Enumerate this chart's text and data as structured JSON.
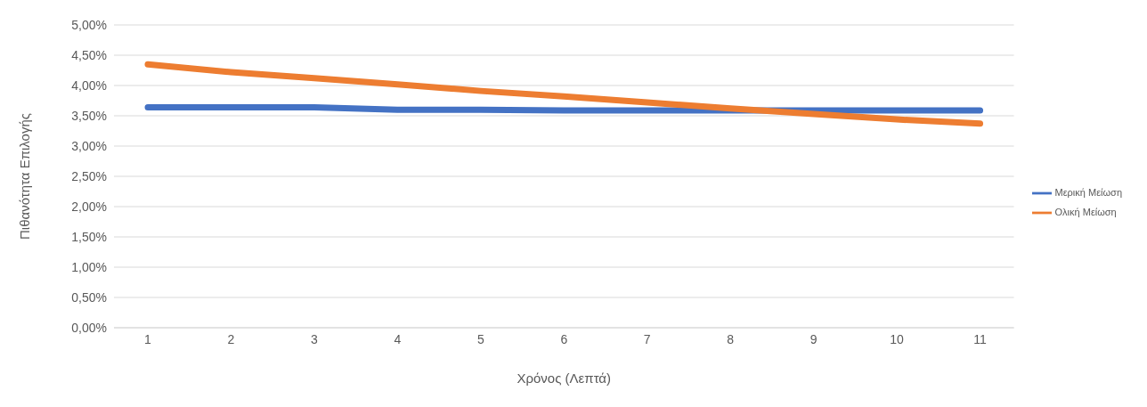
{
  "chart_data": {
    "type": "line",
    "xlabel": "Χρόνος (Λεπτά)",
    "ylabel": "Πιθανότητα Επιλογής",
    "categories": [
      "1",
      "2",
      "3",
      "4",
      "5",
      "6",
      "7",
      "8",
      "9",
      "10",
      "11"
    ],
    "series": [
      {
        "name": "Μερική Μείωση",
        "color": "#4472c4",
        "values": [
          3.64,
          3.64,
          3.64,
          3.6,
          3.6,
          3.59,
          3.59,
          3.59,
          3.59,
          3.59,
          3.59
        ]
      },
      {
        "name": "Ολική Μείωση",
        "color": "#ed7d31",
        "values": [
          4.35,
          4.22,
          4.12,
          4.02,
          3.91,
          3.82,
          3.72,
          3.62,
          3.53,
          3.44,
          3.37
        ]
      }
    ],
    "ylim": [
      0,
      5
    ],
    "yticks": [
      {
        "value": 0,
        "label": "0,00%"
      },
      {
        "value": 0.5,
        "label": "0,50%"
      },
      {
        "value": 1,
        "label": "1,00%"
      },
      {
        "value": 1.5,
        "label": "1,50%"
      },
      {
        "value": 2,
        "label": "2,00%"
      },
      {
        "value": 2.5,
        "label": "2,50%"
      },
      {
        "value": 3,
        "label": "3,00%"
      },
      {
        "value": 3.5,
        "label": "3,50%"
      },
      {
        "value": 4,
        "label": "4,00%"
      },
      {
        "value": 4.5,
        "label": "4,50%"
      },
      {
        "value": 5,
        "label": "5,00%"
      }
    ],
    "grid": "y",
    "legend": "right",
    "marker": "none",
    "line_style": "solid"
  }
}
